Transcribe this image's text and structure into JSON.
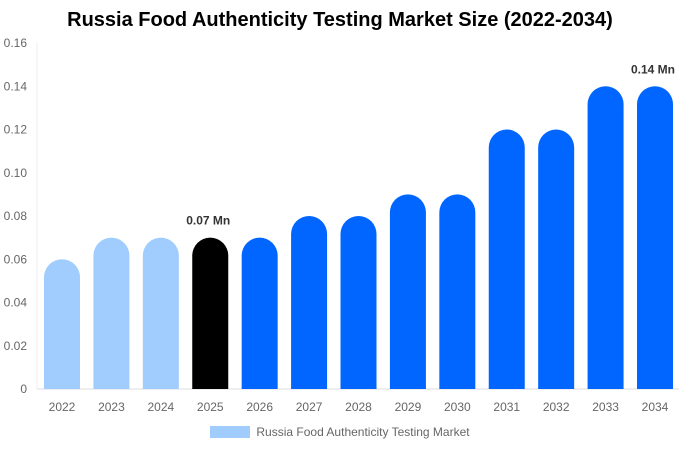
{
  "chart_data": {
    "type": "bar",
    "title": "Russia Food Authenticity Testing Market  Size (2022-2034)",
    "categories": [
      "2022",
      "2023",
      "2024",
      "2025",
      "2026",
      "2027",
      "2028",
      "2029",
      "2030",
      "2031",
      "2032",
      "2033",
      "2034"
    ],
    "series": [
      {
        "name": "Russia Food Authenticity Testing Market",
        "values": [
          0.06,
          0.07,
          0.07,
          0.07,
          0.07,
          0.08,
          0.08,
          0.09,
          0.09,
          0.12,
          0.12,
          0.14,
          0.14
        ]
      }
    ],
    "ylim": [
      0,
      0.16
    ],
    "yticks": [
      "0",
      "0.02",
      "0.04",
      "0.06",
      "0.08",
      "0.10",
      "0.12",
      "0.14",
      "0.16"
    ],
    "data_labels": [
      {
        "category": "2025",
        "text": "0.07 Mn"
      },
      {
        "category": "2034",
        "text": "0.14 Mn"
      }
    ],
    "colors": {
      "history": "#a0cdfd",
      "current": "#000000",
      "forecast": "#0066ff"
    },
    "bar_colors": [
      "history",
      "history",
      "history",
      "current",
      "forecast",
      "forecast",
      "forecast",
      "forecast",
      "forecast",
      "forecast",
      "forecast",
      "forecast",
      "forecast"
    ],
    "grid": false,
    "legend_position": "bottom"
  }
}
